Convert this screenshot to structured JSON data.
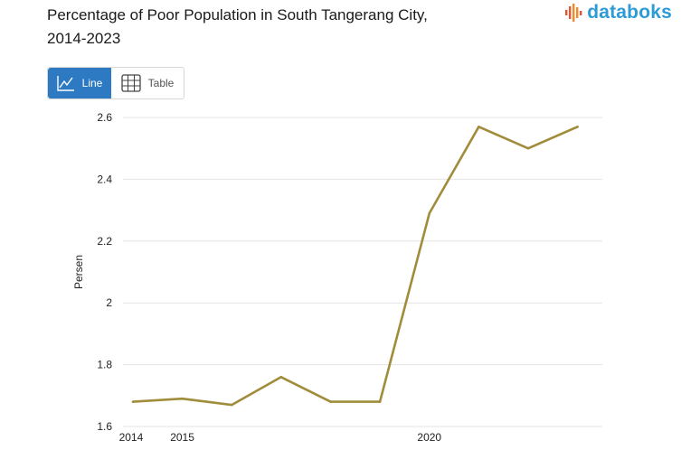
{
  "header": {
    "title_line1": "Percentage of Poor Population in South Tangerang City,",
    "title_line2": "2014-2023",
    "brand": "databoks"
  },
  "view_toggle": {
    "line_label": "Line",
    "table_label": "Table"
  },
  "colors": {
    "series": "#a08c3a",
    "grid": "#e4e4e4",
    "brand": "#2d9bd6",
    "active_button": "#2e7ac2"
  },
  "chart_data": {
    "type": "line",
    "title": "Percentage of Poor Population in South Tangerang City, 2014-2023",
    "xlabel": "",
    "ylabel": "Persen",
    "x": [
      2014,
      2015,
      2016,
      2017,
      2018,
      2019,
      2020,
      2021,
      2022,
      2023
    ],
    "x_tick_labels": [
      "2014",
      "2015",
      "2020"
    ],
    "x_tick_values": [
      2014,
      2015,
      2020
    ],
    "series": [
      {
        "name": "Persen",
        "values": [
          1.68,
          1.69,
          1.67,
          1.76,
          1.68,
          1.68,
          2.29,
          2.57,
          2.5,
          2.57
        ]
      }
    ],
    "ylim": [
      1.6,
      2.6
    ],
    "y_ticks": [
      1.6,
      1.8,
      2.0,
      2.2,
      2.4,
      2.6
    ],
    "y_tick_labels": [
      "1.6",
      "1.8",
      "2",
      "2.2",
      "2.4",
      "2.6"
    ],
    "grid": true,
    "legend": "none"
  }
}
